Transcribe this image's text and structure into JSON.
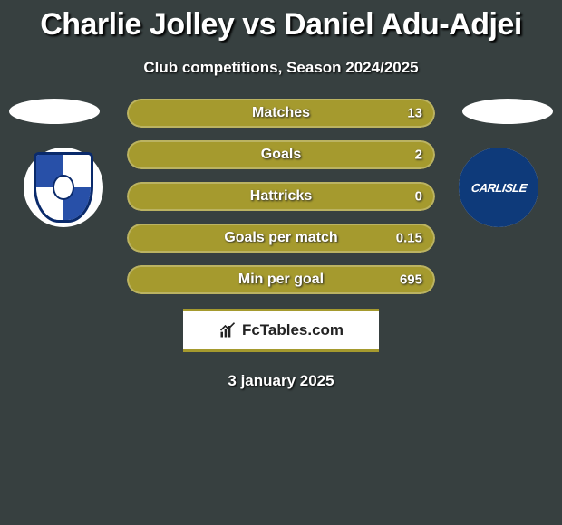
{
  "title": "Charlie Jolley vs Daniel Adu-Adjei",
  "subtitle": "Club competitions, Season 2024/2025",
  "date": "3 january 2025",
  "brand": "FcTables.com",
  "colors": {
    "background": "#374040",
    "accent": "#a59a2e",
    "bar_fill": "#a59a2e",
    "bar_track": "#2d3434",
    "crest_right_bg": "#0e3a7a",
    "crest_left_border": "#0a2a6b",
    "crest_left_blue": "#2850a8",
    "text_white": "#ffffff"
  },
  "crest_right_label": "CARLISLE",
  "stats": [
    {
      "label": "Matches",
      "value": "13",
      "fill_pct": 100
    },
    {
      "label": "Goals",
      "value": "2",
      "fill_pct": 100
    },
    {
      "label": "Hattricks",
      "value": "0",
      "fill_pct": 100
    },
    {
      "label": "Goals per match",
      "value": "0.15",
      "fill_pct": 100
    },
    {
      "label": "Min per goal",
      "value": "695",
      "fill_pct": 100
    }
  ]
}
